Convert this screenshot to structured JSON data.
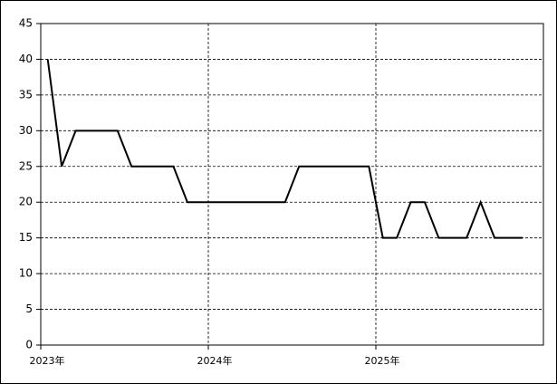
{
  "chart_data": {
    "type": "line",
    "x": [
      "2023-01",
      "2023-02",
      "2023-03",
      "2023-04",
      "2023-05",
      "2023-06",
      "2023-07",
      "2023-08",
      "2023-09",
      "2023-10",
      "2023-11",
      "2023-12",
      "2024-01",
      "2024-02",
      "2024-03",
      "2024-04",
      "2024-05",
      "2024-06",
      "2024-07",
      "2024-08",
      "2024-09",
      "2024-10",
      "2024-11",
      "2024-12",
      "2025-01",
      "2025-02",
      "2025-03",
      "2025-04",
      "2025-05",
      "2025-06",
      "2025-07",
      "2025-08",
      "2025-09",
      "2025-10",
      "2025-11"
    ],
    "values": [
      40,
      25,
      30,
      30,
      30,
      30,
      25,
      25,
      25,
      25,
      20,
      20,
      20,
      20,
      20,
      20,
      20,
      20,
      25,
      25,
      25,
      25,
      25,
      25,
      15,
      15,
      20,
      20,
      15,
      15,
      15,
      20,
      15,
      15,
      15
    ],
    "color": "#000000",
    "xlim": [
      "2023-01",
      "2025-12"
    ],
    "xticks": [
      {
        "value": "2023-01",
        "label": "2023年"
      },
      {
        "value": "2024-01",
        "label": "2024年"
      },
      {
        "value": "2025-01",
        "label": "2025年"
      }
    ],
    "ylim": [
      0,
      45
    ],
    "yticks": [
      0,
      5,
      10,
      15,
      20,
      25,
      30,
      35,
      40,
      45
    ],
    "grid": true
  }
}
